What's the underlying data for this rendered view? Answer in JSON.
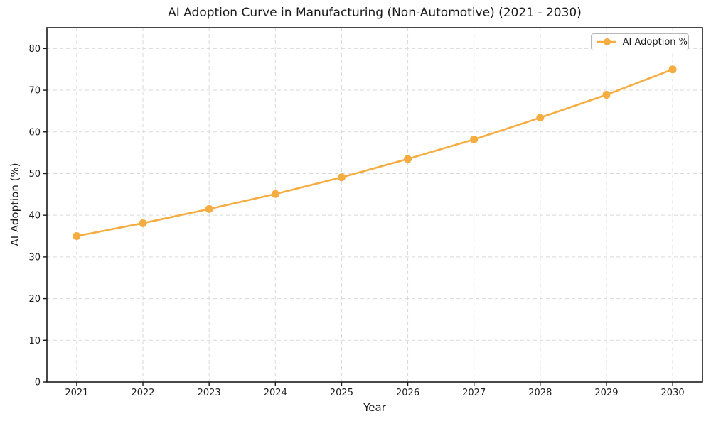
{
  "chart_data": {
    "type": "line",
    "title": "AI Adoption Curve in Manufacturing (Non-Automotive) (2021 - 2030)",
    "xlabel": "Year",
    "ylabel": "AI Adoption (%)",
    "x": [
      2021,
      2022,
      2023,
      2024,
      2025,
      2026,
      2027,
      2028,
      2029,
      2030
    ],
    "series": [
      {
        "name": "AI Adoption %",
        "values": [
          35.0,
          38.1,
          41.5,
          45.1,
          49.1,
          53.5,
          58.2,
          63.4,
          68.9,
          75.0
        ],
        "color": "#F5AC40",
        "marker": "circle"
      }
    ],
    "xticks": [
      "2021",
      "2022",
      "2023",
      "2024",
      "2025",
      "2026",
      "2027",
      "2028",
      "2029",
      "2030"
    ],
    "yticks": [
      0,
      10,
      20,
      30,
      40,
      50,
      60,
      70,
      80
    ],
    "xlim": [
      2020.55,
      2030.45
    ],
    "ylim": [
      0,
      85
    ],
    "grid": {
      "on": true,
      "style": "dashed",
      "color": "#d9d9d9"
    },
    "legend": {
      "position": "upper right",
      "entries": [
        "AI Adoption %"
      ]
    },
    "colors": {
      "line": "#F5AC40",
      "axis": "#1a1a1a",
      "text": "#1a1a1a",
      "grid": "#d9d9d9",
      "background": "#ffffff"
    }
  }
}
